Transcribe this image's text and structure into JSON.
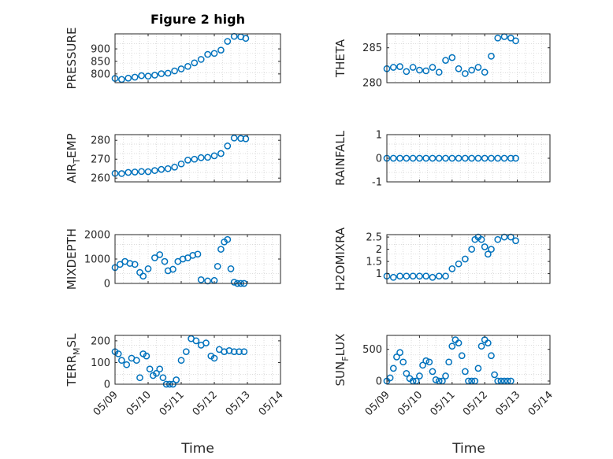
{
  "figure": {
    "marker_color": "#0072BD",
    "x_label": "Time"
  },
  "chart_data": [
    {
      "type": "scatter",
      "title": "Figure 2 high",
      "ylabel": "PRESSURE",
      "ylim": [
        765,
        960
      ],
      "yticks": [
        800,
        850,
        900
      ],
      "xlim": [
        0,
        5
      ],
      "xticks": [
        "05/09",
        "05/10",
        "05/11",
        "05/12",
        "05/13",
        "05/14"
      ],
      "x": [
        0.0,
        0.2,
        0.4,
        0.6,
        0.8,
        1.0,
        1.2,
        1.4,
        1.6,
        1.8,
        2.0,
        2.2,
        2.4,
        2.6,
        2.8,
        3.0,
        3.2,
        3.4,
        3.6,
        3.8,
        3.95
      ],
      "values": [
        782,
        778,
        783,
        787,
        793,
        791,
        795,
        801,
        803,
        812,
        820,
        830,
        844,
        858,
        878,
        882,
        895,
        930,
        950,
        948,
        942
      ]
    },
    {
      "type": "scatter",
      "title": "",
      "ylabel": "THETA",
      "ylim": [
        280,
        287
      ],
      "yticks": [
        280,
        285
      ],
      "xlim": [
        0,
        5
      ],
      "xticks": [
        "05/09",
        "05/10",
        "05/11",
        "05/12",
        "05/13",
        "05/14"
      ],
      "x": [
        0.0,
        0.2,
        0.4,
        0.6,
        0.8,
        1.0,
        1.2,
        1.4,
        1.6,
        1.8,
        2.0,
        2.2,
        2.4,
        2.6,
        2.8,
        3.0,
        3.2,
        3.4,
        3.6,
        3.8,
        3.95
      ],
      "values": [
        282.0,
        282.2,
        282.3,
        281.6,
        282.2,
        281.8,
        281.7,
        282.2,
        281.5,
        283.2,
        283.6,
        282.0,
        281.3,
        281.8,
        282.2,
        281.5,
        283.8,
        286.4,
        286.6,
        286.4,
        286.0
      ]
    },
    {
      "type": "scatter",
      "title": "",
      "ylabel": "AIR_TEMP",
      "ylim": [
        258,
        283
      ],
      "yticks": [
        260,
        270,
        280
      ],
      "xlim": [
        0,
        5
      ],
      "xticks": [
        "05/09",
        "05/10",
        "05/11",
        "05/12",
        "05/13",
        "05/14"
      ],
      "x": [
        0.0,
        0.2,
        0.4,
        0.6,
        0.8,
        1.0,
        1.2,
        1.4,
        1.6,
        1.8,
        2.0,
        2.2,
        2.4,
        2.6,
        2.8,
        3.0,
        3.2,
        3.4,
        3.6,
        3.8,
        3.95
      ],
      "values": [
        262.5,
        262.4,
        263.0,
        263.2,
        263.5,
        263.4,
        264.0,
        264.6,
        265.0,
        265.8,
        267.5,
        269.5,
        270.0,
        270.8,
        271.0,
        271.8,
        273.0,
        277.0,
        281.2,
        281.0,
        280.8
      ]
    },
    {
      "type": "scatter",
      "title": "",
      "ylabel": "RAINFALL",
      "ylim": [
        -1,
        1
      ],
      "yticks": [
        -1,
        0,
        1
      ],
      "xlim": [
        0,
        5
      ],
      "xticks": [
        "05/09",
        "05/10",
        "05/11",
        "05/12",
        "05/13",
        "05/14"
      ],
      "x": [
        0.0,
        0.2,
        0.4,
        0.6,
        0.8,
        1.0,
        1.2,
        1.4,
        1.6,
        1.8,
        2.0,
        2.2,
        2.4,
        2.6,
        2.8,
        3.0,
        3.2,
        3.4,
        3.6,
        3.8,
        3.95
      ],
      "values": [
        0,
        0,
        0,
        0,
        0,
        0,
        0,
        0,
        0,
        0,
        0,
        0,
        0,
        0,
        0,
        0,
        0,
        0,
        0,
        0,
        0
      ]
    },
    {
      "type": "scatter",
      "title": "",
      "ylabel": "MIXDEPTH",
      "ylim": [
        0,
        2000
      ],
      "yticks": [
        0,
        1000,
        2000
      ],
      "xlim": [
        0,
        5
      ],
      "xticks": [
        "05/09",
        "05/10",
        "05/11",
        "05/12",
        "05/13",
        "05/14"
      ],
      "x": [
        0.0,
        0.15,
        0.3,
        0.45,
        0.6,
        0.75,
        0.85,
        1.0,
        1.2,
        1.35,
        1.5,
        1.6,
        1.75,
        1.9,
        2.05,
        2.2,
        2.35,
        2.5,
        2.6,
        2.8,
        3.0,
        3.1,
        3.2,
        3.3,
        3.4,
        3.5,
        3.6,
        3.7,
        3.8,
        3.9
      ],
      "values": [
        650,
        780,
        900,
        820,
        780,
        450,
        300,
        600,
        1050,
        1180,
        900,
        520,
        580,
        900,
        1000,
        1050,
        1150,
        1200,
        150,
        100,
        120,
        700,
        1400,
        1700,
        1800,
        600,
        50,
        0,
        0,
        0
      ]
    },
    {
      "type": "scatter",
      "title": "",
      "ylabel": "H2OMIXRA",
      "ylim": [
        0.6,
        2.6
      ],
      "yticks": [
        1,
        1.5,
        2,
        2.5
      ],
      "xlim": [
        0,
        5
      ],
      "xticks": [
        "05/09",
        "05/10",
        "05/11",
        "05/12",
        "05/13",
        "05/14"
      ],
      "x": [
        0.0,
        0.2,
        0.4,
        0.6,
        0.8,
        1.0,
        1.2,
        1.4,
        1.6,
        1.8,
        2.0,
        2.2,
        2.4,
        2.6,
        2.7,
        2.8,
        2.9,
        3.0,
        3.1,
        3.2,
        3.4,
        3.6,
        3.8,
        3.95
      ],
      "values": [
        0.9,
        0.85,
        0.9,
        0.9,
        0.9,
        0.9,
        0.9,
        0.85,
        0.9,
        0.9,
        1.2,
        1.4,
        1.6,
        2.0,
        2.4,
        2.5,
        2.4,
        2.1,
        1.8,
        2.0,
        2.4,
        2.5,
        2.5,
        2.35
      ]
    },
    {
      "type": "scatter",
      "title": "",
      "ylabel": "TERR_MSL",
      "ylim": [
        0,
        225
      ],
      "yticks": [
        0,
        100,
        200
      ],
      "xlim": [
        0,
        5
      ],
      "xticks": [
        "05/09",
        "05/10",
        "05/11",
        "05/12",
        "05/13",
        "05/14"
      ],
      "x": [
        0.0,
        0.1,
        0.2,
        0.35,
        0.5,
        0.65,
        0.75,
        0.85,
        0.95,
        1.05,
        1.15,
        1.25,
        1.35,
        1.45,
        1.55,
        1.65,
        1.75,
        1.85,
        2.0,
        2.15,
        2.3,
        2.45,
        2.6,
        2.75,
        2.9,
        3.0,
        3.15,
        3.3,
        3.45,
        3.6,
        3.75,
        3.9
      ],
      "values": [
        150,
        140,
        110,
        90,
        120,
        110,
        30,
        140,
        130,
        70,
        40,
        50,
        70,
        30,
        0,
        0,
        0,
        20,
        110,
        150,
        210,
        200,
        180,
        190,
        130,
        120,
        160,
        150,
        155,
        150,
        150,
        150
      ]
    },
    {
      "type": "scatter",
      "title": "",
      "ylabel": "SUN_FLUX",
      "ylim": [
        -50,
        720
      ],
      "yticks": [
        0,
        500
      ],
      "xlim": [
        0,
        5
      ],
      "xticks": [
        "05/09",
        "05/10",
        "05/11",
        "05/12",
        "05/13",
        "05/14"
      ],
      "x": [
        0.0,
        0.1,
        0.2,
        0.3,
        0.4,
        0.5,
        0.6,
        0.7,
        0.8,
        0.9,
        1.0,
        1.1,
        1.2,
        1.3,
        1.4,
        1.5,
        1.6,
        1.7,
        1.8,
        1.9,
        2.0,
        2.1,
        2.2,
        2.3,
        2.4,
        2.5,
        2.6,
        2.7,
        2.8,
        2.9,
        3.0,
        3.1,
        3.2,
        3.3,
        3.4,
        3.5,
        3.6,
        3.7,
        3.8
      ],
      "values": [
        0,
        50,
        200,
        380,
        450,
        300,
        120,
        40,
        0,
        0,
        80,
        250,
        320,
        300,
        150,
        20,
        0,
        0,
        80,
        300,
        550,
        650,
        600,
        400,
        150,
        0,
        0,
        0,
        200,
        550,
        650,
        600,
        400,
        100,
        0,
        0,
        0,
        0,
        0
      ]
    }
  ]
}
